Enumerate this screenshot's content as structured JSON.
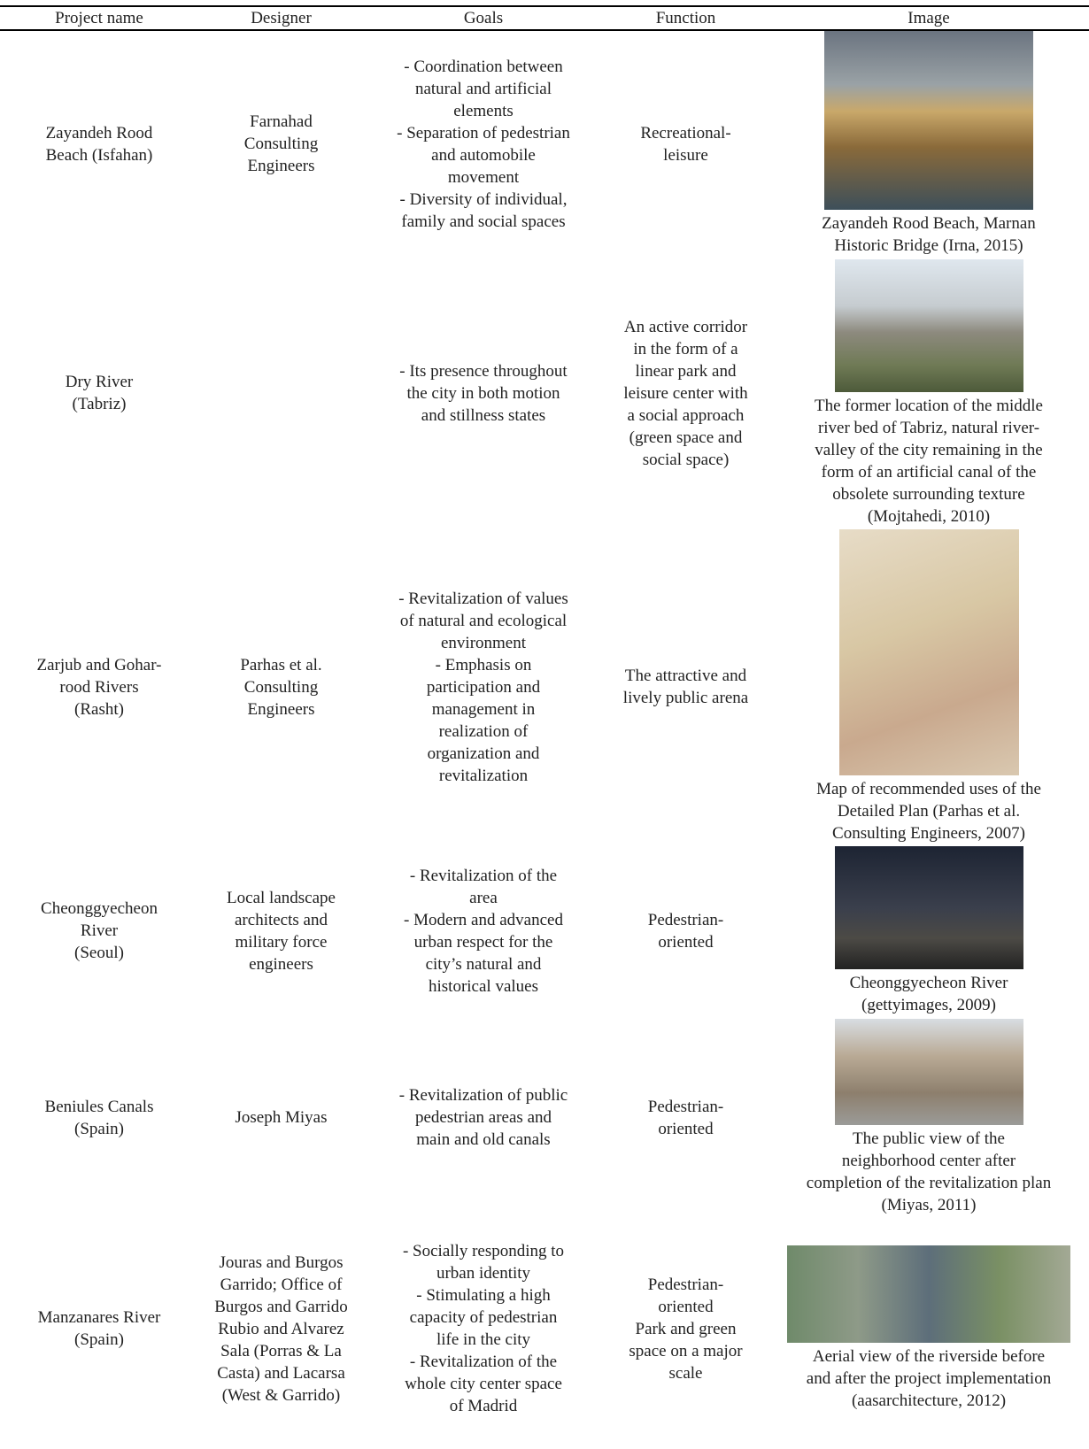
{
  "table": {
    "header": [
      "Project name",
      "Designer",
      "Goals",
      "Function",
      "Image"
    ],
    "rows": [
      {
        "project": [
          "Zayandeh Rood",
          "Beach (Isfahan)"
        ],
        "designer": [
          "Farnahad",
          "Consulting",
          "Engineers"
        ],
        "goals": [
          "- Coordination between",
          "natural and artificial",
          "elements",
          "- Separation of pedestrian",
          "and automobile",
          "movement",
          "- Diversity of individual,",
          "family and social spaces"
        ],
        "function": [
          "Recreational-",
          "leisure"
        ],
        "caption": [
          "Zayandeh Rood Beach, Marnan",
          "Historic Bridge (Irna, 2015)"
        ]
      },
      {
        "project": [
          "Dry River",
          "(Tabriz)"
        ],
        "designer": [],
        "goals": [
          "- Its presence throughout",
          "the city in both motion",
          "and stillness states"
        ],
        "function": [
          "An active corridor",
          "in the form of a",
          "linear park and",
          "leisure center with",
          "a social approach",
          "(green space and",
          "social space)"
        ],
        "caption": [
          "The former location of the middle",
          "river bed of Tabriz, natural river-",
          "valley of the city remaining in the",
          "form of an artificial canal of the",
          "obsolete surrounding texture",
          "(Mojtahedi, 2010)"
        ]
      },
      {
        "project": [
          "Zarjub and Gohar-",
          "rood Rivers",
          "(Rasht)"
        ],
        "designer": [
          "Parhas et al.",
          "Consulting",
          "Engineers"
        ],
        "goals": [
          "- Revitalization of values",
          "of natural and ecological",
          "environment",
          "- Emphasis on",
          "participation and",
          "management in",
          "realization of",
          "organization and",
          "revitalization"
        ],
        "function": [
          "The attractive and",
          "lively public arena"
        ],
        "caption": [
          "Map of recommended uses of the",
          "Detailed Plan (Parhas et al.",
          "Consulting Engineers, 2007)"
        ]
      },
      {
        "project": [
          "Cheonggyecheon",
          "River",
          "(Seoul)"
        ],
        "designer": [
          "Local landscape",
          "architects and",
          "military force",
          "engineers"
        ],
        "goals": [
          "- Revitalization of the",
          "area",
          "- Modern and advanced",
          "urban respect for the",
          "city’s natural and",
          "historical values"
        ],
        "function": [
          "Pedestrian-",
          "oriented"
        ],
        "caption": [
          "Cheonggyecheon River",
          "(gettyimages, 2009)"
        ]
      },
      {
        "project": [
          "Beniules Canals",
          "(Spain)"
        ],
        "designer": [
          "Joseph Miyas"
        ],
        "goals": [
          "- Revitalization of public",
          "pedestrian areas and",
          "main and old canals"
        ],
        "function": [
          "Pedestrian-",
          "oriented"
        ],
        "caption": [
          "The public view of the",
          "neighborhood center after",
          "completion of the revitalization plan",
          "(Miyas, 2011)"
        ]
      },
      {
        "project": [
          "Manzanares River",
          "(Spain)"
        ],
        "designer": [
          "Jouras and Burgos",
          "Garrido; Office of",
          "Burgos and Garrido",
          "Rubio and Alvarez",
          "Sala (Porras & La",
          "Casta) and Lacarsa",
          "(West & Garrido)"
        ],
        "goals": [
          "- Socially responding to",
          "urban identity",
          "- Stimulating a high",
          "capacity of pedestrian",
          "life in the city",
          "- Revitalization of the",
          "whole city center space",
          "of Madrid"
        ],
        "function": [
          "Pedestrian-",
          "oriented",
          "Park and green",
          "space on a major",
          "scale"
        ],
        "caption": [
          "Aerial view of the riverside before",
          "and after the project implementation",
          "(aasarchitecture, 2012)"
        ]
      }
    ]
  }
}
